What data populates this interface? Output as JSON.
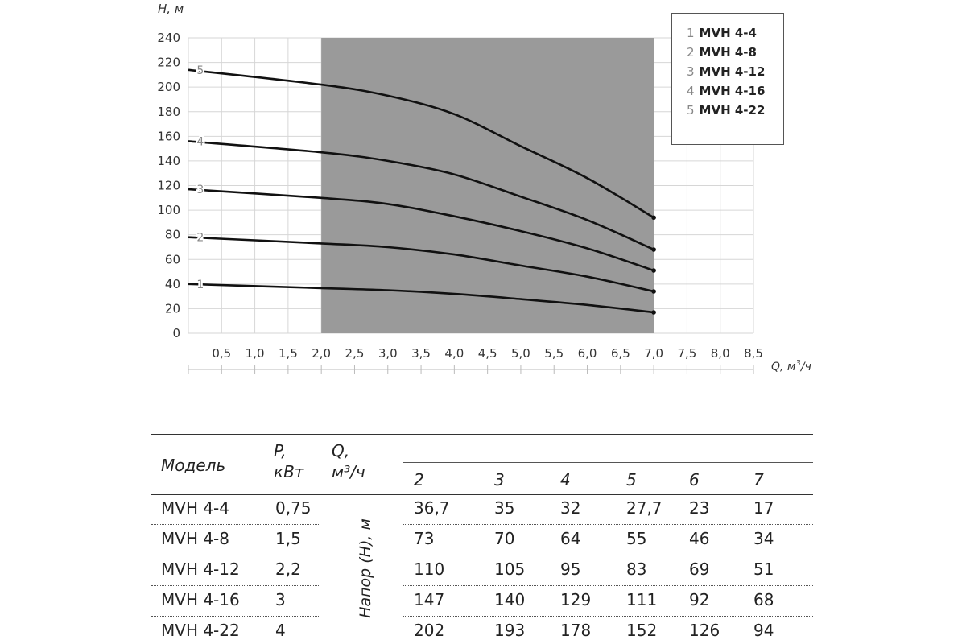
{
  "chart_data": {
    "type": "line",
    "ylabel": "H, м",
    "xlabel_main": "Q, м",
    "xlabel_sup": "3",
    "xlabel_tail": "/ч",
    "ylim": [
      0,
      240
    ],
    "xlim": [
      0,
      8.5
    ],
    "y_ticks": [
      "0",
      "20",
      "40",
      "60",
      "80",
      "100",
      "120",
      "140",
      "160",
      "180",
      "200",
      "220",
      "240"
    ],
    "x_ticks": [
      "0,5",
      "1,0",
      "1,5",
      "2,0",
      "2,5",
      "3,0",
      "3,5",
      "4,0",
      "4,5",
      "5,0",
      "5,5",
      "6,0",
      "6,5",
      "7,0",
      "7,5",
      "8,0",
      "8,5"
    ],
    "operating_range": [
      2.0,
      7.0
    ],
    "series": [
      {
        "name": "1",
        "x": [
          0,
          2,
          3,
          4,
          5,
          6,
          7
        ],
        "values": [
          40,
          36.7,
          35,
          32,
          27.7,
          23,
          17
        ]
      },
      {
        "name": "2",
        "x": [
          0,
          2,
          3,
          4,
          5,
          6,
          7
        ],
        "values": [
          78,
          73,
          70,
          64,
          55,
          46,
          34
        ]
      },
      {
        "name": "3",
        "x": [
          0,
          2,
          3,
          4,
          5,
          6,
          7
        ],
        "values": [
          117,
          110,
          105,
          95,
          83,
          69,
          51
        ]
      },
      {
        "name": "4",
        "x": [
          0,
          2,
          3,
          4,
          5,
          6,
          7
        ],
        "values": [
          156,
          147,
          140,
          129,
          111,
          92,
          68
        ]
      },
      {
        "name": "5",
        "x": [
          0,
          2,
          3,
          4,
          5,
          6,
          7
        ],
        "values": [
          214,
          202,
          193,
          178,
          152,
          126,
          94
        ]
      }
    ],
    "legend": [
      {
        "num": "1",
        "label": "MVH 4-4"
      },
      {
        "num": "2",
        "label": "MVH 4-8"
      },
      {
        "num": "3",
        "label": "MVH 4-12"
      },
      {
        "num": "4",
        "label": "MVH 4-16"
      },
      {
        "num": "5",
        "label": "MVH 4-22"
      }
    ],
    "legend_position": "top-right",
    "grid": true,
    "colors": {
      "band": "#9a9a9a",
      "line": "#111111",
      "grid": "#d6d6d6"
    }
  },
  "table": {
    "col_model": "Модель",
    "col_power_1": "P,",
    "col_power_2": "кВт",
    "col_q_1": "Q,",
    "col_q_2": "м³/ч",
    "flow_values": [
      "2",
      "3",
      "4",
      "5",
      "6",
      "7"
    ],
    "head_label": "Напор (H), м",
    "rows": [
      {
        "model": "MVH 4-4",
        "power": "0,75",
        "values": [
          "36,7",
          "35",
          "32",
          "27,7",
          "23",
          "17"
        ]
      },
      {
        "model": "MVH 4-8",
        "power": "1,5",
        "values": [
          "73",
          "70",
          "64",
          "55",
          "46",
          "34"
        ]
      },
      {
        "model": "MVH 4-12",
        "power": "2,2",
        "values": [
          "110",
          "105",
          "95",
          "83",
          "69",
          "51"
        ]
      },
      {
        "model": "MVH 4-16",
        "power": "3",
        "values": [
          "147",
          "140",
          "129",
          "111",
          "92",
          "68"
        ]
      },
      {
        "model": "MVH 4-22",
        "power": "4",
        "values": [
          "202",
          "193",
          "178",
          "152",
          "126",
          "94"
        ]
      }
    ]
  }
}
